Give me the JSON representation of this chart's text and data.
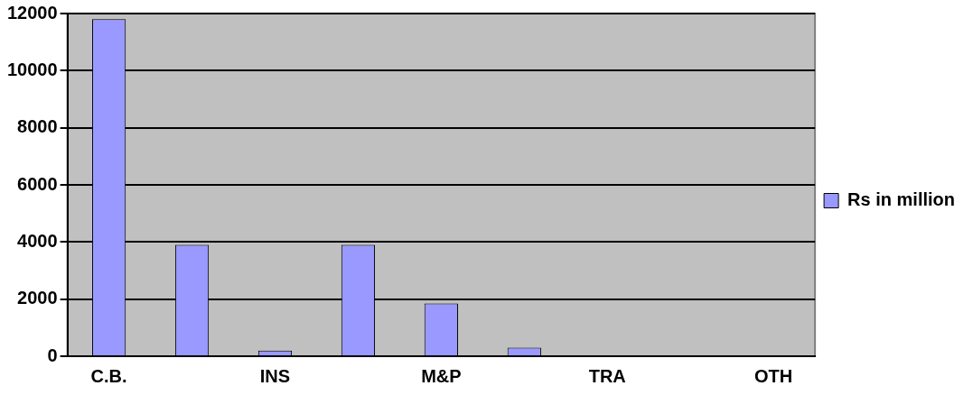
{
  "chart_data": {
    "type": "bar",
    "categories": [
      "C.B.",
      null,
      "INS",
      null,
      "M&P",
      null,
      "TRA",
      null,
      "OTH"
    ],
    "series": [
      {
        "name": "Rs in million",
        "color": "#9999ff",
        "values": [
          11800,
          3900,
          200,
          3900,
          1850,
          300,
          0,
          0,
          0
        ]
      }
    ],
    "ylim": [
      0,
      12000
    ],
    "yticks": [
      0,
      2000,
      4000,
      6000,
      8000,
      10000,
      12000
    ],
    "grid": "y",
    "legend": "right"
  }
}
